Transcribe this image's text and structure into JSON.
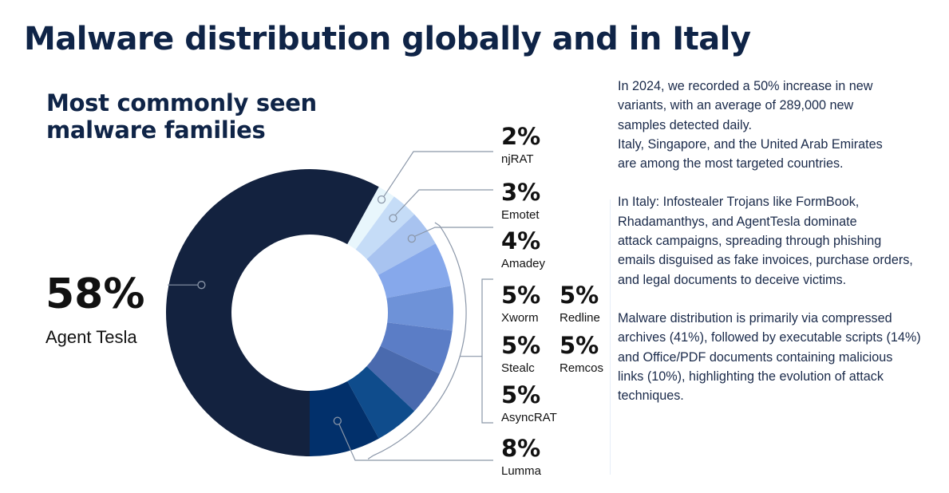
{
  "header": {
    "title": "Malware distribution globally and in Italy"
  },
  "chart_data": {
    "type": "donut",
    "title": "Most commonly seen\nmalware families",
    "slices": [
      {
        "name": "Agent Tesla",
        "value": 58,
        "label": "58%",
        "color": "#13223f"
      },
      {
        "name": "njRAT",
        "value": 2,
        "label": "2%",
        "color": "#e8f6fc"
      },
      {
        "name": "Emotet",
        "value": 3,
        "label": "3%",
        "color": "#c5dcf7"
      },
      {
        "name": "Amadey",
        "value": 4,
        "label": "4%",
        "color": "#a8c3f0"
      },
      {
        "name": "Xworm",
        "value": 5,
        "label": "5%",
        "color": "#86a8eb"
      },
      {
        "name": "Redline",
        "value": 5,
        "label": "5%",
        "color": "#6e92d8"
      },
      {
        "name": "Remcos",
        "value": 5,
        "label": "5%",
        "color": "#5b7dc6"
      },
      {
        "name": "Stealc",
        "value": 5,
        "label": "5%",
        "color": "#4a6aae"
      },
      {
        "name": "AsyncRAT",
        "value": 5,
        "label": "5%",
        "color": "#0f4c8c"
      },
      {
        "name": "Lumma",
        "value": 8,
        "label": "8%",
        "color": "#02306b"
      }
    ]
  },
  "description": {
    "paragraph1": "In 2024, we recorded a 50% increase in new\n variants, with an average of 289,000 new\nsamples detected daily.\nItaly, Singapore, and the United Arab Emirates\nare among the most targeted countries.",
    "paragraph2": "In Italy: Infostealer Trojans like FormBook,\nRhadamanthys, and AgentTesla dominate\nattack campaigns, spreading through phishing\nemails disguised as fake invoices, purchase orders,\nand legal documents to deceive victims.",
    "paragraph3": "Malware distribution is primarily via compressed\narchives (41%), followed by executable scripts (14%)\nand Office/PDF documents containing malicious\n links (10%), highlighting the evolution of attack\ntechniques."
  }
}
